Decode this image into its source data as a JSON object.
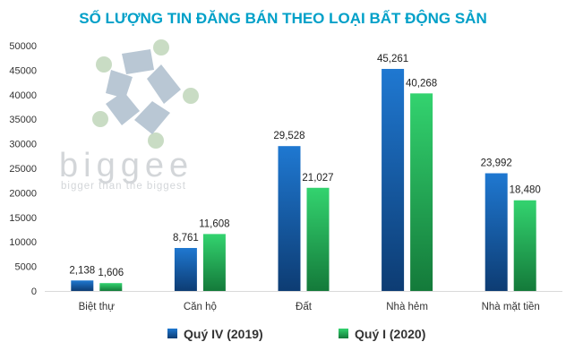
{
  "watermark": {
    "brand": "biggee",
    "tagline": "bigger than the biggest"
  },
  "chart_data": {
    "type": "bar",
    "title": "SỐ LƯỢNG TIN ĐĂNG BÁN THEO LOẠI BẤT ĐỘNG SẢN",
    "categories": [
      "Biệt thự",
      "Căn hộ",
      "Đất",
      "Nhà hẻm",
      "Nhà mặt tiền"
    ],
    "series": [
      {
        "name": "Quý IV (2019)",
        "values": [
          2138,
          8761,
          29528,
          45261,
          23992
        ],
        "labels": [
          "2,138",
          "8,761",
          "29,528",
          "45,261",
          "23,992"
        ],
        "color": "#1c6fc4"
      },
      {
        "name": "Quý I (2020)",
        "values": [
          1606,
          11608,
          21027,
          40268,
          18480
        ],
        "labels": [
          "1,606",
          "11,608",
          "21,027",
          "40,268",
          "18,480"
        ],
        "color": "#2ec76a"
      }
    ],
    "yticks": [
      "0",
      "5000",
      "10000",
      "15000",
      "20000",
      "25000",
      "30000",
      "35000",
      "40000",
      "45000",
      "50000"
    ],
    "ylim": [
      0,
      50000
    ],
    "grid": false,
    "legend": "bottom"
  }
}
